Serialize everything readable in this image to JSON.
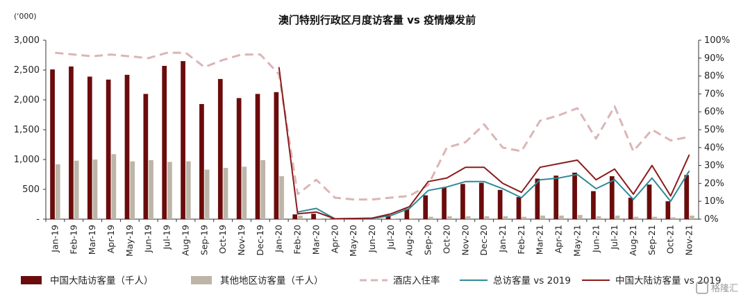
{
  "chart_data": {
    "type": "bar",
    "title": "澳门特别行政区月度访客量 vs 疫情爆发前",
    "left_axis_unit": "('000)",
    "ylim_left": [
      0,
      3000
    ],
    "ylim_right": [
      0,
      1
    ],
    "left_ticks": [
      "-",
      "500",
      "1,000",
      "1,500",
      "2,000",
      "2,500",
      "3,000"
    ],
    "right_ticks": [
      "0%",
      "10%",
      "20%",
      "30%",
      "40%",
      "50%",
      "60%",
      "70%",
      "80%",
      "90%",
      "100%"
    ],
    "categories": [
      "Jan-19",
      "Feb-19",
      "Mar-19",
      "Apr-19",
      "May-19",
      "Jun-19",
      "Jul-19",
      "Aug-19",
      "Sep-19",
      "Oct-19",
      "Nov-19",
      "Dec-19",
      "Jan-20",
      "Feb-20",
      "Mar-20",
      "Apr-20",
      "May-20",
      "Jun-20",
      "Jul-20",
      "Aug-20",
      "Sep-20",
      "Oct-20",
      "Nov-20",
      "Dec-20",
      "Jan-21",
      "Feb-21",
      "Mar-21",
      "Apr-21",
      "May-21",
      "Jun-21",
      "Jul-21",
      "Aug-21",
      "Sep-21",
      "Oct-21",
      "Nov-21"
    ],
    "series": [
      {
        "name": "中国大陆访客量（千人）",
        "axis": "left",
        "kind": "bar",
        "color": "#6b0c0c",
        "values": [
          2510,
          2560,
          2390,
          2340,
          2420,
          2100,
          2570,
          2650,
          1930,
          2350,
          2030,
          2100,
          2130,
          80,
          90,
          10,
          15,
          20,
          70,
          170,
          400,
          530,
          590,
          610,
          490,
          370,
          680,
          730,
          780,
          470,
          720,
          360,
          580,
          300,
          740
        ]
      },
      {
        "name": "其他地区访客量（千人）",
        "axis": "left",
        "kind": "bar",
        "color": "#bdb6a8",
        "values": [
          920,
          980,
          1000,
          1090,
          970,
          990,
          960,
          970,
          830,
          860,
          880,
          990,
          720,
          60,
          10,
          5,
          5,
          5,
          10,
          15,
          40,
          50,
          50,
          50,
          50,
          40,
          60,
          60,
          70,
          50,
          60,
          40,
          40,
          30,
          60
        ]
      },
      {
        "name": "酒店入住率",
        "axis": "right",
        "kind": "line",
        "color": "#dbb5b5",
        "dash": true,
        "values": [
          0.93,
          0.92,
          0.91,
          0.92,
          0.91,
          0.9,
          0.93,
          0.93,
          0.85,
          0.89,
          0.92,
          0.92,
          0.81,
          0.14,
          0.22,
          0.12,
          0.11,
          0.11,
          0.12,
          0.13,
          0.19,
          0.4,
          0.43,
          0.53,
          0.4,
          0.38,
          0.55,
          0.58,
          0.62,
          0.45,
          0.63,
          0.38,
          0.5,
          0.44,
          0.46
        ]
      },
      {
        "name": "总访客量 vs 2019",
        "axis": "right",
        "kind": "line",
        "color": "#2e8a96",
        "values": [
          null,
          null,
          null,
          null,
          null,
          null,
          null,
          null,
          null,
          null,
          null,
          null,
          null,
          0.04,
          0.06,
          0.002,
          0.004,
          0.004,
          0.02,
          0.06,
          0.16,
          0.18,
          0.21,
          0.21,
          0.17,
          0.12,
          0.22,
          0.23,
          0.25,
          0.17,
          0.22,
          0.11,
          0.23,
          0.1,
          0.27
        ]
      },
      {
        "name": "中国大陆访客量 vs 2019",
        "axis": "right",
        "kind": "line",
        "color": "#8b1a1a",
        "values": [
          null,
          null,
          null,
          null,
          null,
          null,
          null,
          null,
          null,
          null,
          null,
          null,
          0.85,
          0.03,
          0.04,
          0.002,
          0.004,
          0.006,
          0.03,
          0.07,
          0.21,
          0.23,
          0.29,
          0.29,
          0.2,
          0.15,
          0.29,
          0.31,
          0.33,
          0.22,
          0.28,
          0.14,
          0.3,
          0.13,
          0.36
        ]
      }
    ]
  },
  "watermark": "格隆汇"
}
